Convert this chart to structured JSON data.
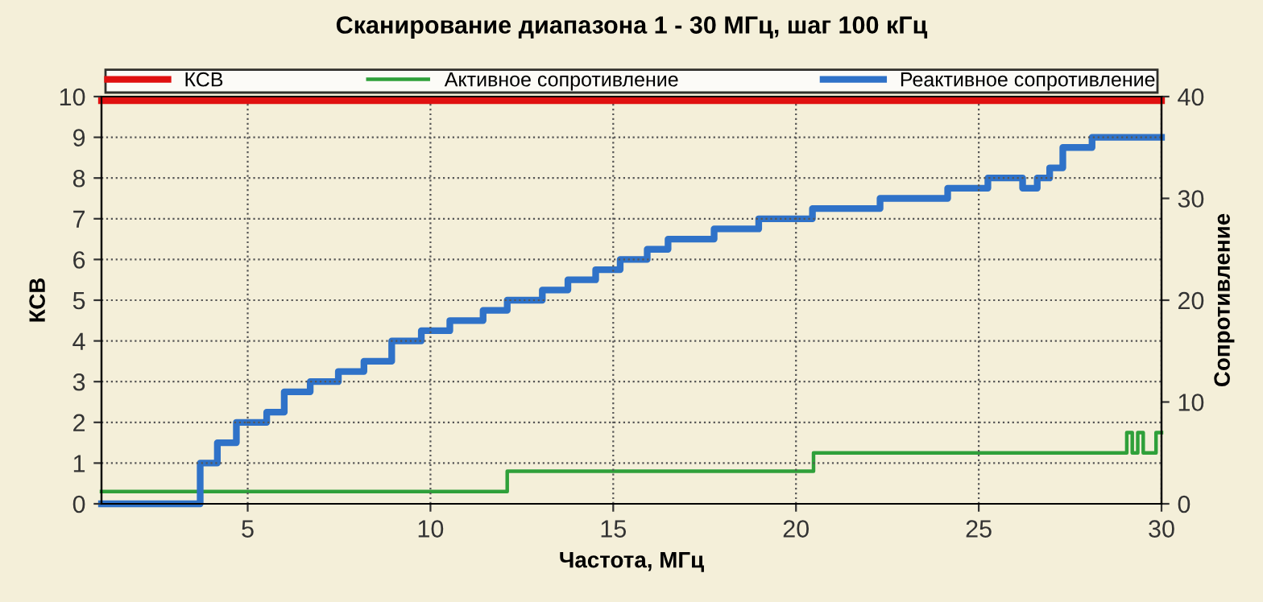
{
  "chart_data": {
    "type": "step",
    "title": "Сканирование диапазона 1 - 30 МГц, шаг 100 кГц",
    "xlabel": "Частота, МГц",
    "ylabel": "КСВ",
    "y2label": "Сопротивление",
    "xlim": [
      1,
      30
    ],
    "xticks": [
      5,
      10,
      15,
      20,
      25,
      30
    ],
    "ylim": [
      0,
      10
    ],
    "yticks": [
      0,
      1,
      2,
      3,
      4,
      5,
      6,
      7,
      8,
      9,
      10
    ],
    "y2lim": [
      0,
      40
    ],
    "y2ticks": [
      0,
      10,
      20,
      30,
      40
    ],
    "grid": true,
    "legend": "top",
    "marker": "none",
    "line_style": "solid",
    "series": [
      {
        "name": "КСВ",
        "type": "line",
        "color": "#e01010",
        "x": [
          1,
          30
        ],
        "values": [
          9.9,
          9.9
        ]
      },
      {
        "name": "Активное сопротивление",
        "axis": "y2",
        "color": "#2fa03a",
        "x": [
          1,
          12.1,
          20.48,
          29.05,
          29.2,
          29.35,
          29.5,
          29.85,
          30
        ],
        "values": [
          1.2,
          3.2,
          5,
          7,
          5,
          7,
          5,
          7,
          7
        ]
      },
      {
        "name": "Реактивное сопротивление",
        "axis": "y2",
        "color": "#2f72c8",
        "x": [
          1,
          3.7,
          4.17,
          4.69,
          5.52,
          6.0,
          6.71,
          7.48,
          8.18,
          8.94,
          9.75,
          10.53,
          11.44,
          12.1,
          13.06,
          13.76,
          14.52,
          15.19,
          15.93,
          16.5,
          17.76,
          18.98,
          20.45,
          22.3,
          24.15,
          25.25,
          26.2,
          26.6,
          26.94,
          27.3,
          28.1,
          30
        ],
        "values": [
          0,
          4,
          6,
          8,
          9,
          11,
          12,
          13,
          14,
          16,
          17,
          18,
          19,
          20,
          21,
          22,
          23,
          24,
          25,
          26,
          27,
          28,
          29,
          30,
          31,
          32,
          31,
          32,
          33,
          35,
          36,
          36
        ]
      }
    ]
  }
}
